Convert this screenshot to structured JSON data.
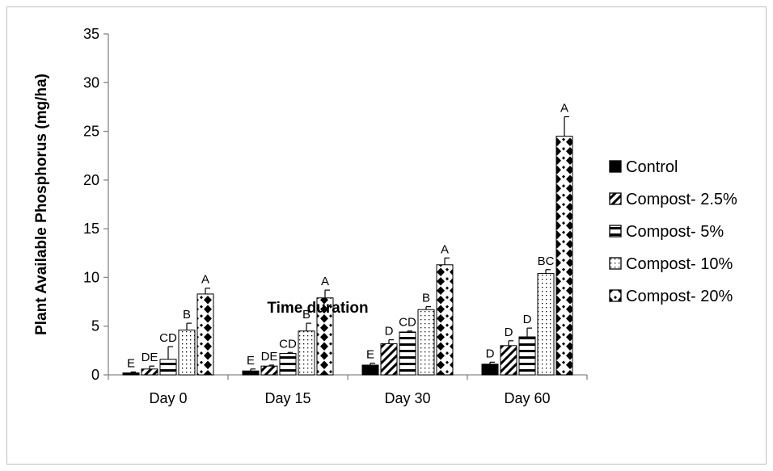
{
  "chart_data": {
    "type": "bar",
    "xlabel": "Time duration",
    "ylabel": "Plant Available Phosphorus (mg/ha)",
    "ylim": [
      0,
      35
    ],
    "yticks": [
      "0",
      "5",
      "10",
      "15",
      "20",
      "25",
      "30",
      "35"
    ],
    "categories": [
      "Day 0",
      "Day 15",
      "Day 30",
      "Day 60"
    ],
    "legend_position": "right",
    "grid": false,
    "series": [
      {
        "name": "Control",
        "pattern": "solid",
        "values": [
          0.2,
          0.4,
          1.0,
          1.1
        ],
        "errors": [
          0.1,
          0.2,
          0.2,
          0.2
        ],
        "labels": [
          "E",
          "E",
          "E",
          "D"
        ]
      },
      {
        "name": "Compost- 2.5%",
        "pattern": "diagonal",
        "values": [
          0.6,
          0.9,
          3.2,
          3.0
        ],
        "errors": [
          0.3,
          0.1,
          0.4,
          0.5
        ],
        "labels": [
          "DE",
          "DE",
          "D",
          "D"
        ]
      },
      {
        "name": "Compost- 5%",
        "pattern": "horizontal",
        "values": [
          1.6,
          2.2,
          4.4,
          3.9
        ],
        "errors": [
          1.3,
          0.1,
          0.1,
          0.9
        ],
        "labels": [
          "CD",
          "CD",
          "CD",
          "D"
        ]
      },
      {
        "name": "Compost- 10%",
        "pattern": "dots",
        "values": [
          4.6,
          4.5,
          6.7,
          10.4
        ],
        "errors": [
          0.7,
          0.8,
          0.3,
          0.4
        ],
        "labels": [
          "B",
          "B",
          "B",
          "BC"
        ]
      },
      {
        "name": "Compost- 20%",
        "pattern": "diamonds",
        "values": [
          8.3,
          7.9,
          11.3,
          24.5
        ],
        "errors": [
          0.6,
          0.8,
          0.7,
          2.0
        ],
        "labels": [
          "A",
          "A",
          "A",
          "A"
        ]
      }
    ]
  }
}
